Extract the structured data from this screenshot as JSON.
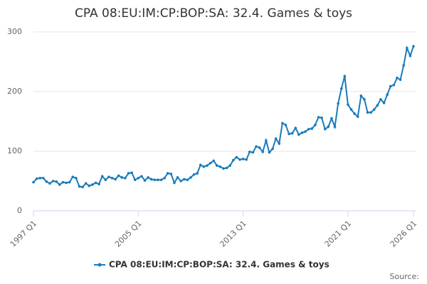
{
  "chart_data": {
    "type": "line",
    "title": "CPA 08:EU:IM:CP:BOP:SA: 32.4. Games & toys",
    "source": "Source:",
    "categories": [
      "1997 Q1",
      null,
      null,
      null,
      null,
      null,
      null,
      null,
      null,
      null,
      null,
      null,
      null,
      null,
      null,
      null,
      null,
      null,
      null,
      null,
      null,
      null,
      null,
      null,
      null,
      null,
      null,
      null,
      null,
      null,
      null,
      null,
      "2005 Q1",
      null,
      null,
      null,
      null,
      null,
      null,
      null,
      null,
      null,
      null,
      null,
      null,
      null,
      null,
      null,
      null,
      null,
      null,
      null,
      null,
      null,
      null,
      null,
      null,
      null,
      null,
      null,
      null,
      null,
      null,
      null,
      "2013 Q1",
      null,
      null,
      null,
      null,
      null,
      null,
      null,
      null,
      null,
      null,
      null,
      null,
      null,
      null,
      null,
      null,
      null,
      null,
      null,
      null,
      null,
      null,
      null,
      null,
      null,
      null,
      null,
      null,
      null,
      null,
      null,
      "2021 Q1",
      null,
      null,
      null,
      null,
      null,
      null,
      null,
      null,
      null,
      null,
      null,
      null,
      null,
      null,
      null,
      null,
      null,
      null,
      null,
      "2026 Q1"
    ],
    "series": [
      {
        "name": "CPA 08:EU:IM:CP:BOP:SA: 32.4. Games & toys",
        "color": "#1a7bb9",
        "values": [
          48,
          54,
          55,
          55,
          49,
          46,
          50,
          49,
          44,
          48,
          47,
          48,
          57,
          55,
          41,
          40,
          46,
          42,
          44,
          47,
          45,
          58,
          52,
          57,
          55,
          53,
          59,
          56,
          55,
          63,
          64,
          52,
          55,
          58,
          51,
          56,
          53,
          52,
          52,
          52,
          55,
          63,
          62,
          47,
          56,
          50,
          53,
          52,
          56,
          61,
          63,
          77,
          74,
          76,
          80,
          84,
          76,
          74,
          71,
          72,
          76,
          85,
          90,
          86,
          87,
          86,
          99,
          98,
          108,
          106,
          99,
          118,
          98,
          104,
          121,
          113,
          147,
          144,
          129,
          130,
          139,
          128,
          131,
          133,
          137,
          138,
          144,
          157,
          156,
          137,
          141,
          155,
          141,
          180,
          205,
          226,
          178,
          170,
          163,
          158,
          193,
          187,
          165,
          165,
          170,
          177,
          187,
          181,
          195,
          209,
          211,
          223,
          220,
          244,
          273,
          260,
          276
        ]
      }
    ],
    "ylim": [
      0,
      300
    ],
    "yticks": [
      0,
      100,
      200,
      300
    ],
    "grid": true
  }
}
